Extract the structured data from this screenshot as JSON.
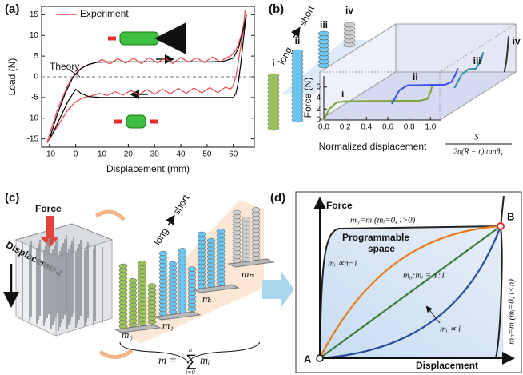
{
  "panel_labels": [
    "(a)",
    "(b)",
    "(c)",
    "(d)"
  ],
  "chart_data": [
    {
      "type": "line",
      "xlabel": "Displacement (mm)",
      "ylabel": "Load (N)",
      "xlim": [
        -13,
        68
      ],
      "ylim": [
        -17,
        17
      ],
      "xticks": [
        -10,
        0,
        10,
        20,
        30,
        40,
        50,
        60
      ],
      "yticks": [
        -15,
        -10,
        -5,
        0,
        5,
        10,
        15
      ],
      "zero_line": true,
      "annotations": [
        "Theory"
      ],
      "series": [
        {
          "name": "Experiment",
          "color": "#e8474c",
          "x": [
            -11,
            -9,
            -7,
            -5,
            -3,
            -1,
            1,
            3,
            5,
            8,
            10,
            13,
            16,
            19,
            22,
            25,
            28,
            31,
            34,
            37,
            40,
            43,
            46,
            49,
            52,
            55,
            57,
            59,
            61,
            62,
            63,
            64,
            64.5,
            64,
            63,
            62,
            61,
            60,
            59,
            57,
            54,
            51,
            48,
            45,
            42,
            39,
            36,
            33,
            30,
            27,
            24,
            21,
            18,
            15,
            12,
            9,
            6,
            3,
            0,
            -3,
            -6,
            -9,
            -11
          ],
          "values": [
            -16,
            -12,
            -8,
            -5,
            -2,
            0,
            1.5,
            2.5,
            3,
            3.5,
            4.2,
            3.1,
            4.4,
            3.3,
            4.5,
            3.2,
            4.6,
            3.4,
            4.5,
            3.2,
            4.7,
            3.5,
            4.6,
            3.4,
            4.8,
            3.6,
            4.5,
            5,
            6.5,
            8,
            10,
            13,
            16,
            12,
            8,
            4,
            0,
            -2,
            -3,
            -2.5,
            -3.8,
            -2.6,
            -3.9,
            -2.7,
            -4,
            -2.8,
            -4.1,
            -3,
            -4.2,
            -3.1,
            -4.3,
            -3.3,
            -4.4,
            -3.6,
            -4.5,
            -4,
            -4.6,
            -5,
            -6,
            -8,
            -11,
            -14,
            -16
          ]
        },
        {
          "color": "#000000",
          "x": [
            -10,
            -7,
            -4,
            -1,
            2,
            5,
            8,
            12,
            20,
            30,
            40,
            50,
            56,
            60,
            62,
            64,
            65,
            64,
            63,
            62,
            61,
            60,
            55,
            40,
            20,
            10,
            5,
            2,
            0,
            -3,
            -6,
            -9,
            -10
          ],
          "values": [
            -15,
            -9,
            -4,
            0,
            2,
            3,
            3.5,
            3.6,
            3.6,
            3.6,
            3.6,
            3.6,
            3.7,
            4.5,
            7,
            12,
            15,
            10,
            4,
            -1,
            -4,
            -5,
            -5,
            -5,
            -5,
            -5,
            -4.8,
            -4,
            -3,
            -6,
            -10,
            -14,
            -15
          ]
        }
      ]
    },
    {
      "type": "line",
      "ylabel": "Force (N)",
      "xlabel": "Normalized displacement",
      "xlabel_formula": {
        "numerator": "S",
        "denominator": "2n(R − r) tanθ₁"
      },
      "order": [
        "long",
        "short"
      ],
      "xlim": [
        0,
        1.05
      ],
      "ylim": [
        0,
        8
      ],
      "xticks": [
        {
          "value": 0,
          "label": "0.0"
        },
        {
          "value": 0.2,
          "label": "0.2"
        },
        {
          "value": 0.4,
          "label": "0.4"
        },
        {
          "value": 0.6,
          "label": "0.6"
        },
        {
          "value": 0.8,
          "label": "0.8"
        },
        {
          "value": 1,
          "label": "1.0"
        }
      ],
      "yticks": [
        0,
        2,
        4,
        6
      ],
      "series": [
        {
          "name": "i",
          "color": "#7aa33a",
          "x": [
            0,
            0.05,
            0.12,
            0.2,
            0.9,
            0.97,
            1.0,
            1.02
          ],
          "values": [
            0,
            2,
            3.2,
            3.4,
            3.5,
            3.8,
            5,
            6.5
          ]
        },
        {
          "name": "ii",
          "color": "#3a4ee8",
          "x": [
            0.4,
            0.47,
            0.55,
            0.9,
            0.96,
            1.0,
            1.02
          ],
          "values": [
            0,
            2.5,
            3.4,
            3.5,
            4,
            5.5,
            6.5
          ]
        },
        {
          "name": "iii",
          "color": "#2a8fa0",
          "x": [
            0.75,
            0.82,
            0.88,
            0.95,
            1.0,
            1.02
          ],
          "values": [
            0,
            2.5,
            3.4,
            3.5,
            5,
            6.5
          ]
        },
        {
          "name": "iv",
          "color": "#333333",
          "x": [
            0.98,
            1.0,
            1.01,
            1.02
          ],
          "values": [
            0,
            2,
            4,
            6.5
          ]
        }
      ]
    }
  ],
  "diagram_c": {
    "force": "Force",
    "displacement": "Displacement",
    "order": [
      "long",
      "short"
    ],
    "groups": [
      "m₀",
      "m₁",
      "mᵢ",
      "mₙ"
    ],
    "formula": {
      "lhs": "m =",
      "sum": "∑",
      "upper": "n",
      "lower": "i=0",
      "term": "mᵢ"
    }
  },
  "diagram_d": {
    "y_label": "Force",
    "x_label": "Displacement",
    "start": "A",
    "end": "B",
    "region": [
      "Programmable",
      "space"
    ],
    "labels": [
      "m₀=m (mᵢ=0, i>0)",
      "mᵢ ∝n−i",
      "m₀:mᵢ = 1:1",
      "mᵢ ∝ i",
      "mₙ=m (mᵢ=0, i<n)"
    ]
  }
}
